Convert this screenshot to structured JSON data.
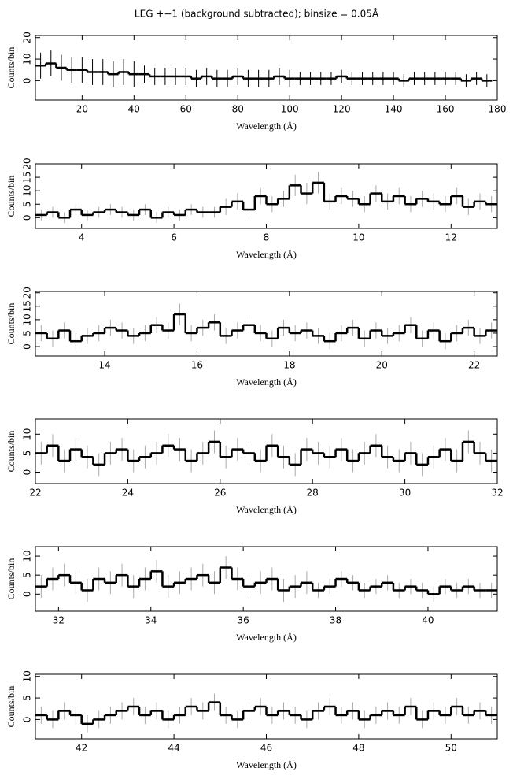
{
  "chart_data": [
    {
      "type": "step",
      "title": "LEG +−1 (background subtracted); binsize = 0.05Å",
      "xlabel": "Wavelength (Å)",
      "ylabel": "Counts/bin",
      "color": "#000000",
      "error_color": "#000000",
      "x": [
        4,
        8,
        12,
        16,
        20,
        24,
        28,
        32,
        36,
        40,
        44,
        48,
        52,
        56,
        60,
        64,
        68,
        72,
        76,
        80,
        84,
        88,
        92,
        96,
        100,
        104,
        108,
        112,
        116,
        120,
        124,
        128,
        132,
        136,
        140,
        144,
        148,
        152,
        156,
        160,
        164,
        168,
        172,
        176
      ],
      "values": [
        7,
        8,
        6,
        5,
        5,
        4,
        4,
        3,
        4,
        3,
        3,
        2,
        2,
        2,
        2,
        1,
        2,
        1,
        1,
        2,
        1,
        1,
        1,
        2,
        1,
        1,
        1,
        1,
        1,
        2,
        1,
        1,
        1,
        1,
        1,
        0,
        1,
        1,
        1,
        1,
        1,
        0,
        1,
        0
      ],
      "errors": [
        6,
        6,
        6,
        6,
        6,
        6,
        6,
        6,
        6,
        6,
        4,
        4,
        4,
        4,
        4,
        4,
        4,
        4,
        4,
        4,
        4,
        4,
        4,
        4,
        4,
        3,
        3,
        3,
        3,
        3,
        3,
        3,
        3,
        3,
        3,
        3,
        3,
        3,
        3,
        3,
        3,
        3,
        3,
        3
      ],
      "xlim": [
        2,
        180
      ],
      "ylim": [
        -9,
        21
      ],
      "xticks": [
        20,
        40,
        60,
        80,
        100,
        120,
        140,
        160,
        180
      ],
      "yticks": [
        0,
        10,
        20
      ]
    },
    {
      "type": "step",
      "xlabel": "Wavelength (Å)",
      "ylabel": "Counts/bin",
      "color": "#000000",
      "error_color": "#aaaaaa",
      "x": [
        3.125,
        3.375,
        3.625,
        3.875,
        4.125,
        4.375,
        4.625,
        4.875,
        5.125,
        5.375,
        5.625,
        5.875,
        6.125,
        6.375,
        6.625,
        6.875,
        7.125,
        7.375,
        7.625,
        7.875,
        8.125,
        8.375,
        8.625,
        8.875,
        9.125,
        9.375,
        9.625,
        9.875,
        10.125,
        10.375,
        10.625,
        10.875,
        11.125,
        11.375,
        11.625,
        11.875,
        12.125,
        12.375,
        12.625,
        12.875
      ],
      "values": [
        1,
        2,
        0,
        3,
        1,
        2,
        3,
        2,
        1,
        3,
        0,
        2,
        1,
        3,
        2,
        2,
        4,
        6,
        3,
        8,
        5,
        7,
        12,
        9,
        13,
        6,
        8,
        7,
        5,
        9,
        6,
        8,
        5,
        7,
        6,
        5,
        8,
        4,
        6,
        5
      ],
      "errors": [
        2,
        2,
        2,
        2,
        2,
        2,
        2,
        2,
        2,
        2,
        2,
        2,
        2,
        2,
        2,
        2,
        3,
        3,
        3,
        3,
        3,
        3,
        4,
        4,
        4,
        3,
        3,
        3,
        3,
        3,
        3,
        3,
        3,
        3,
        3,
        3,
        3,
        3,
        3,
        3
      ],
      "xlim": [
        3,
        13
      ],
      "ylim": [
        -4,
        20
      ],
      "xticks": [
        4,
        6,
        8,
        10,
        12
      ],
      "yticks": [
        0,
        5,
        10,
        15,
        20
      ]
    },
    {
      "type": "step",
      "xlabel": "Wavelength (Å)",
      "ylabel": "Counts/bin",
      "color": "#000000",
      "error_color": "#aaaaaa",
      "x": [
        12.625,
        12.875,
        13.125,
        13.375,
        13.625,
        13.875,
        14.125,
        14.375,
        14.625,
        14.875,
        15.125,
        15.375,
        15.625,
        15.875,
        16.125,
        16.375,
        16.625,
        16.875,
        17.125,
        17.375,
        17.625,
        17.875,
        18.125,
        18.375,
        18.625,
        18.875,
        19.125,
        19.375,
        19.625,
        19.875,
        20.125,
        20.375,
        20.625,
        20.875,
        21.125,
        21.375,
        21.625,
        21.875,
        22.125,
        22.375
      ],
      "values": [
        5,
        3,
        6,
        2,
        4,
        5,
        7,
        6,
        4,
        5,
        8,
        6,
        12,
        5,
        7,
        9,
        4,
        6,
        8,
        5,
        3,
        7,
        5,
        6,
        4,
        2,
        5,
        7,
        3,
        6,
        4,
        5,
        8,
        3,
        6,
        2,
        5,
        7,
        4,
        6
      ],
      "errors": [
        3,
        3,
        3,
        3,
        3,
        3,
        3,
        3,
        3,
        3,
        3,
        3,
        4,
        3,
        3,
        3,
        3,
        3,
        3,
        3,
        3,
        3,
        3,
        3,
        3,
        3,
        3,
        3,
        3,
        3,
        3,
        3,
        3,
        3,
        3,
        3,
        3,
        3,
        3,
        3
      ],
      "xlim": [
        12.5,
        22.5
      ],
      "ylim": [
        -3.5,
        20.5
      ],
      "xticks": [
        14,
        16,
        18,
        20,
        22
      ],
      "yticks": [
        0,
        5,
        10,
        15,
        20
      ]
    },
    {
      "type": "step",
      "xlabel": "Wavelength (Å)",
      "ylabel": "Counts/bin",
      "color": "#000000",
      "error_color": "#aaaaaa",
      "x": [
        22.125,
        22.375,
        22.625,
        22.875,
        23.125,
        23.375,
        23.625,
        23.875,
        24.125,
        24.375,
        24.625,
        24.875,
        25.125,
        25.375,
        25.625,
        25.875,
        26.125,
        26.375,
        26.625,
        26.875,
        27.125,
        27.375,
        27.625,
        27.875,
        28.125,
        28.375,
        28.625,
        28.875,
        29.125,
        29.375,
        29.625,
        29.875,
        30.125,
        30.375,
        30.625,
        30.875,
        31.125,
        31.375,
        31.625,
        31.875
      ],
      "values": [
        5,
        7,
        3,
        6,
        4,
        2,
        5,
        6,
        3,
        4,
        5,
        7,
        6,
        3,
        5,
        8,
        4,
        6,
        5,
        3,
        7,
        4,
        2,
        6,
        5,
        4,
        6,
        3,
        5,
        7,
        4,
        3,
        5,
        2,
        4,
        6,
        3,
        8,
        5,
        3
      ],
      "errors": [
        3,
        3,
        3,
        3,
        3,
        3,
        3,
        3,
        3,
        3,
        3,
        3,
        3,
        3,
        3,
        3,
        3,
        3,
        3,
        3,
        3,
        3,
        3,
        3,
        3,
        3,
        3,
        3,
        3,
        3,
        3,
        3,
        3,
        3,
        3,
        3,
        3,
        3,
        3,
        3
      ],
      "xlim": [
        22,
        32
      ],
      "ylim": [
        -3,
        14
      ],
      "xticks": [
        22,
        24,
        26,
        28,
        30,
        32
      ],
      "yticks": [
        0,
        5,
        10
      ]
    },
    {
      "type": "step",
      "xlabel": "Wavelength (Å)",
      "ylabel": "Counts/bin",
      "color": "#000000",
      "error_color": "#aaaaaa",
      "x": [
        31.625,
        31.875,
        32.125,
        32.375,
        32.625,
        32.875,
        33.125,
        33.375,
        33.625,
        33.875,
        34.125,
        34.375,
        34.625,
        34.875,
        35.125,
        35.375,
        35.625,
        35.875,
        36.125,
        36.375,
        36.625,
        36.875,
        37.125,
        37.375,
        37.625,
        37.875,
        38.125,
        38.375,
        38.625,
        38.875,
        39.125,
        39.375,
        39.625,
        39.875,
        40.125,
        40.375,
        40.625,
        40.875,
        41.125,
        41.375
      ],
      "values": [
        2,
        4,
        5,
        3,
        1,
        4,
        3,
        5,
        2,
        4,
        6,
        2,
        3,
        4,
        5,
        3,
        7,
        4,
        2,
        3,
        4,
        1,
        2,
        3,
        1,
        2,
        4,
        3,
        1,
        2,
        3,
        1,
        2,
        1,
        0,
        2,
        1,
        2,
        1,
        1
      ],
      "errors": [
        3,
        3,
        3,
        3,
        3,
        3,
        3,
        3,
        3,
        3,
        3,
        3,
        3,
        3,
        3,
        3,
        3,
        3,
        3,
        3,
        3,
        3,
        3,
        3,
        2,
        2,
        2,
        2,
        2,
        2,
        2,
        2,
        2,
        2,
        2,
        2,
        2,
        2,
        2,
        2
      ],
      "xlim": [
        31.5,
        41.5
      ],
      "ylim": [
        -4.5,
        12.5
      ],
      "xticks": [
        32,
        34,
        36,
        38,
        40
      ],
      "yticks": [
        0,
        5,
        10
      ]
    },
    {
      "type": "step",
      "xlabel": "Wavelength (Å)",
      "ylabel": "Counts/bin",
      "color": "#000000",
      "error_color": "#aaaaaa",
      "x": [
        41.125,
        41.375,
        41.625,
        41.875,
        42.125,
        42.375,
        42.625,
        42.875,
        43.125,
        43.375,
        43.625,
        43.875,
        44.125,
        44.375,
        44.625,
        44.875,
        45.125,
        45.375,
        45.625,
        45.875,
        46.125,
        46.375,
        46.625,
        46.875,
        47.125,
        47.375,
        47.625,
        47.875,
        48.125,
        48.375,
        48.625,
        48.875,
        49.125,
        49.375,
        49.625,
        49.875,
        50.125,
        50.375,
        50.625,
        50.875
      ],
      "values": [
        1,
        0,
        2,
        1,
        -1,
        0,
        1,
        2,
        3,
        1,
        2,
        0,
        1,
        3,
        2,
        4,
        1,
        0,
        2,
        3,
        1,
        2,
        1,
        0,
        2,
        3,
        1,
        2,
        0,
        1,
        2,
        1,
        3,
        0,
        2,
        1,
        3,
        1,
        2,
        1
      ],
      "errors": [
        2,
        2,
        2,
        2,
        2,
        2,
        2,
        2,
        2,
        2,
        2,
        2,
        2,
        2,
        2,
        2,
        2,
        2,
        2,
        2,
        2,
        2,
        2,
        2,
        2,
        2,
        2,
        2,
        2,
        2,
        2,
        2,
        2,
        2,
        2,
        2,
        2,
        2,
        2,
        2
      ],
      "xlim": [
        41,
        51
      ],
      "ylim": [
        -4.5,
        10.5
      ],
      "xticks": [
        42,
        44,
        46,
        48,
        50
      ],
      "yticks": [
        0,
        5,
        10
      ]
    }
  ]
}
